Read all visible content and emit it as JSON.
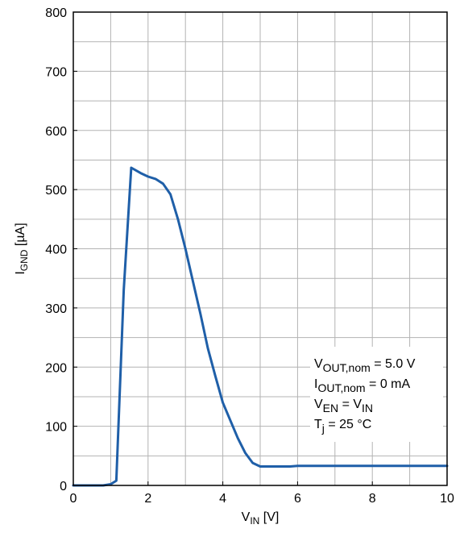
{
  "chart_data": {
    "type": "line",
    "xlabel": {
      "main": "V",
      "sub": "IN",
      "unit": " [V]"
    },
    "ylabel": {
      "main": "I",
      "sub": "GND",
      "unit": " [µA]"
    },
    "xlim": [
      0,
      10
    ],
    "ylim": [
      0,
      800
    ],
    "x_ticks": [
      0,
      2,
      4,
      6,
      8,
      10
    ],
    "y_ticks": [
      0,
      100,
      200,
      300,
      400,
      500,
      600,
      700,
      800
    ],
    "x_minor_step": 1,
    "y_minor_step": 50,
    "grid": true,
    "series": [
      {
        "color": "#1f5fa8",
        "x": [
          0,
          0.5,
          0.8,
          1.0,
          1.15,
          1.35,
          1.55,
          1.8,
          2.0,
          2.2,
          2.4,
          2.6,
          2.8,
          3.0,
          3.2,
          3.4,
          3.6,
          3.8,
          4.0,
          4.2,
          4.4,
          4.6,
          4.8,
          5.0,
          5.4,
          5.8,
          6.0,
          7.0,
          8.0,
          9.0,
          10.0
        ],
        "y": [
          0,
          0,
          0,
          2,
          8,
          330,
          537,
          528,
          522,
          518,
          510,
          492,
          450,
          400,
          345,
          290,
          232,
          185,
          140,
          110,
          80,
          55,
          38,
          32,
          32,
          32,
          33,
          33,
          33,
          33,
          33
        ]
      }
    ],
    "annotations": [
      {
        "main": "V",
        "sub": "OUT,nom",
        "rest": " = 5.0 V"
      },
      {
        "main": "I",
        "sub": "OUT,nom",
        "rest": " = 0 mA"
      },
      {
        "main": "V",
        "sub": "EN",
        "rest": " = V",
        "sub2": "IN"
      },
      {
        "main": "T",
        "sub": "j",
        "rest": " = 25 °C"
      }
    ],
    "legend_placement": "lower-right"
  }
}
